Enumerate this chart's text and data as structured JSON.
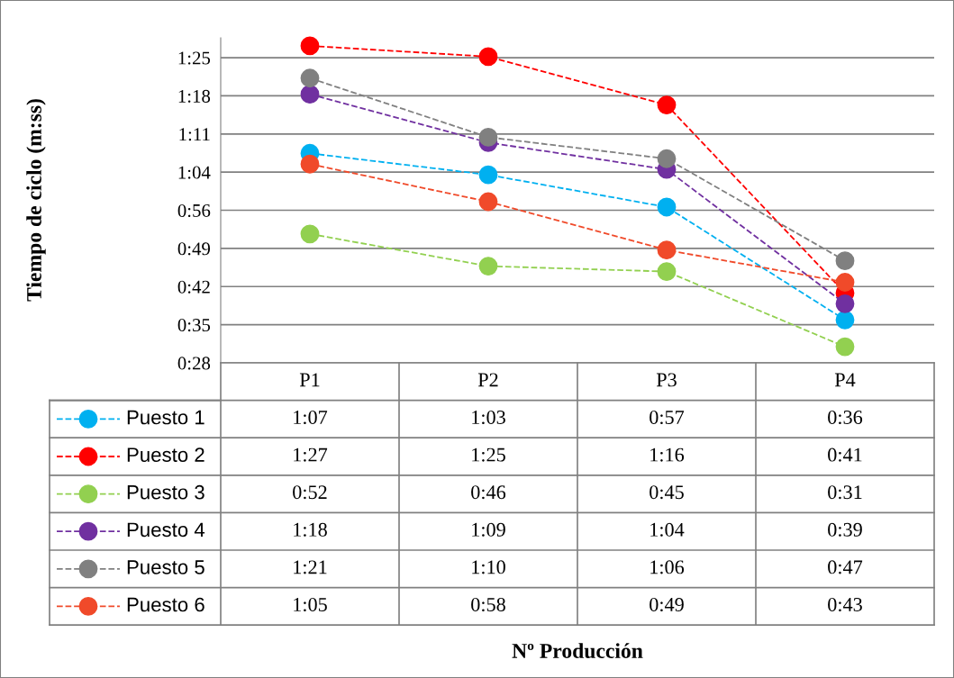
{
  "chart_data": {
    "type": "line",
    "annotations": [
      "Tiempo de ciclo (m:ss)",
      "Nº Producción"
    ],
    "categories": [
      "P1",
      "P2",
      "P3",
      "P4"
    ],
    "ylim": [
      28,
      88.5
    ],
    "yticks": [
      {
        "value": 28,
        "label": "0:28"
      },
      {
        "value": 35.1,
        "label": "0:35"
      },
      {
        "value": 42.2,
        "label": "0:42"
      },
      {
        "value": 49.3,
        "label": "0:49"
      },
      {
        "value": 56.4,
        "label": "0:56"
      },
      {
        "value": 63.5,
        "label": "1:04"
      },
      {
        "value": 70.6,
        "label": "1:11"
      },
      {
        "value": 77.7,
        "label": "1:18"
      },
      {
        "value": 84.8,
        "label": "1:25"
      }
    ],
    "grid": "y",
    "marker": "circle",
    "line_style": "dashed",
    "legend": "bottom left",
    "series": [
      {
        "name": "Puesto 1",
        "color": "#00b0f0",
        "values": [
          67,
          63,
          57,
          36
        ],
        "value_labels": [
          "1:07",
          "1:03",
          "0:57",
          "0:36"
        ]
      },
      {
        "name": "Puesto 2",
        "color": "#ff0000",
        "values": [
          87,
          85,
          76,
          41
        ],
        "value_labels": [
          "1:27",
          "1:25",
          "1:16",
          "0:41"
        ]
      },
      {
        "name": "Puesto 3",
        "color": "#92d050",
        "values": [
          52,
          46,
          45,
          31
        ],
        "value_labels": [
          "0:52",
          "0:46",
          "0:45",
          "0:31"
        ]
      },
      {
        "name": "Puesto 4",
        "color": "#7030a0",
        "values": [
          78,
          69,
          64,
          39
        ],
        "value_labels": [
          "1:18",
          "1:09",
          "1:04",
          "0:39"
        ]
      },
      {
        "name": "Puesto 5",
        "color": "#808080",
        "values": [
          81,
          70,
          66,
          47
        ],
        "value_labels": [
          "1:21",
          "1:10",
          "1:06",
          "0:47"
        ]
      },
      {
        "name": "Puesto 6",
        "color": "#f04a2a",
        "values": [
          65,
          58,
          49,
          43
        ],
        "value_labels": [
          "1:05",
          "0:58",
          "0:49",
          "0:43"
        ]
      }
    ]
  }
}
